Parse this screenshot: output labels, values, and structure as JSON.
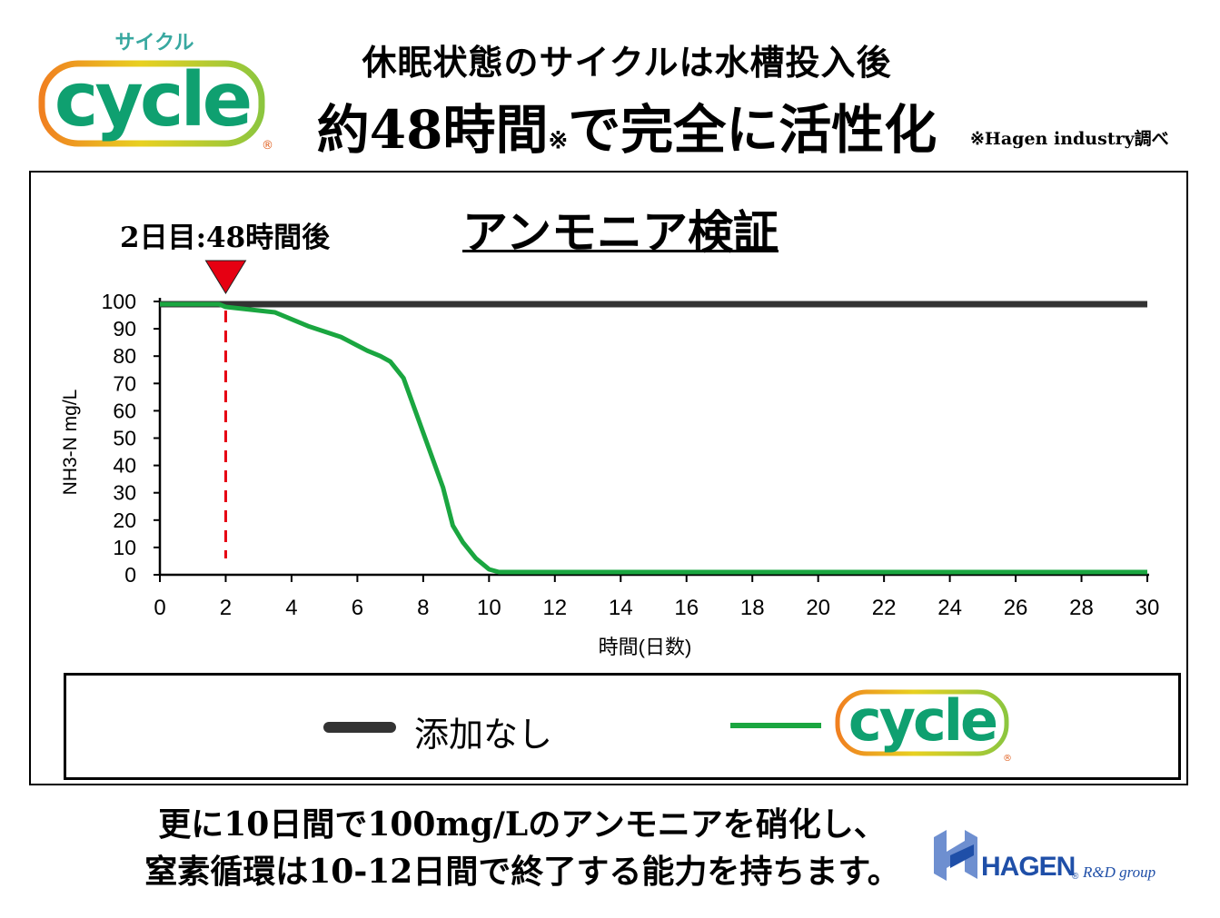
{
  "header": {
    "logo_small_text": "サイクル",
    "logo_word": "cycle",
    "logo_mark": "®",
    "headline_line1": "休眠状態のサイクルは水槽投入後",
    "headline_line2_main": "約48時間",
    "headline_line2_mark": "※",
    "headline_line2_rest": "で完全に活性化",
    "source_note": "※Hagen industry調べ"
  },
  "chart_data": {
    "type": "line",
    "title": "アンモニア検証",
    "xlabel": "時間(日数)",
    "ylabel": "NH3-N mg/L",
    "xlim": [
      0,
      30
    ],
    "ylim": [
      0,
      100
    ],
    "xticks": [
      0,
      2,
      4,
      6,
      8,
      10,
      12,
      14,
      16,
      18,
      20,
      22,
      24,
      26,
      28,
      30
    ],
    "yticks": [
      0,
      10,
      20,
      30,
      40,
      50,
      60,
      70,
      80,
      90,
      100
    ],
    "series": [
      {
        "name": "添加なし",
        "color": "#333333",
        "x": [
          0,
          30
        ],
        "y": [
          99,
          99
        ]
      },
      {
        "name": "cycle",
        "color": "#1aa640",
        "x": [
          0,
          1.8,
          2,
          3.5,
          4.5,
          5.5,
          6.3,
          6.7,
          7,
          7.4,
          8,
          8.6,
          8.9,
          9.2,
          9.6,
          10,
          10.3,
          30
        ],
        "y": [
          99,
          99,
          98,
          96,
          91,
          87,
          82,
          80,
          78,
          72,
          52,
          32,
          18,
          12,
          6,
          2,
          1,
          1
        ]
      }
    ],
    "marker": {
      "x": 2,
      "label": "2日目:48時間後",
      "color": "#e60012"
    },
    "legend": {
      "placement": "bottom",
      "items": [
        {
          "label": "添加なし",
          "color": "#333333"
        },
        {
          "label": "cycle",
          "color": "#1aa640",
          "shown_as": "cycle-logo"
        }
      ]
    }
  },
  "footer": {
    "line1": "更に10日間で100mg/Lのアンモニアを硝化し、",
    "line2": "窒素循環は10-12日間で終了する能力を持ちます。"
  },
  "hagen": {
    "name": "HAGEN",
    "mark": "®",
    "sub": "R&D group",
    "colors": {
      "blue": "#1f4fa8",
      "light_blue": "#6e8fd0"
    }
  },
  "colors": {
    "logo_green": "#0fa070",
    "logo_orange": "#f08020",
    "logo_yellow": "#e8d020",
    "logo_ring_green": "#8cc63f",
    "logo_small_text": "#38a8a0",
    "marker_red": "#e60012"
  }
}
